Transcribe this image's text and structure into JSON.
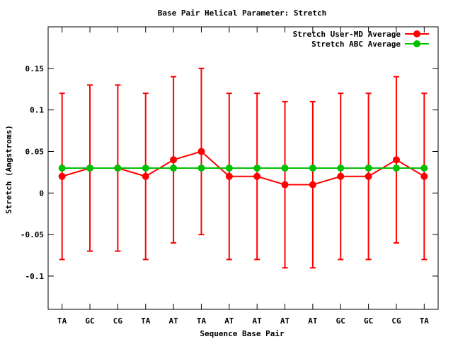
{
  "chart_data": {
    "type": "line",
    "title": "Base Pair Helical Parameter: Stretch",
    "xlabel": "Sequence Base Pair",
    "ylabel": "Stretch (Angstroms)",
    "categories": [
      "TA",
      "GC",
      "CG",
      "TA",
      "AT",
      "TA",
      "AT",
      "AT",
      "AT",
      "AT",
      "GC",
      "GC",
      "CG",
      "TA"
    ],
    "ylim": [
      -0.14,
      0.2
    ],
    "yticks": [
      -0.1,
      -0.05,
      0,
      0.05,
      0.1,
      0.15
    ],
    "ytick_labels": [
      "-0.1",
      "-0.05",
      "0",
      "0.05",
      "0.1",
      "0.15"
    ],
    "grid": false,
    "legend_position": "top-right",
    "series": [
      {
        "name": "Stretch User-MD Average",
        "color": "#ff0000",
        "values": [
          0.02,
          0.03,
          0.03,
          0.02,
          0.04,
          0.05,
          0.02,
          0.02,
          0.01,
          0.01,
          0.02,
          0.02,
          0.04,
          0.02
        ],
        "error_low": [
          -0.08,
          -0.07,
          -0.07,
          -0.08,
          -0.06,
          -0.05,
          -0.08,
          -0.08,
          -0.09,
          -0.09,
          -0.08,
          -0.08,
          -0.06,
          -0.08
        ],
        "error_high": [
          0.12,
          0.13,
          0.13,
          0.12,
          0.14,
          0.15,
          0.12,
          0.12,
          0.11,
          0.11,
          0.12,
          0.12,
          0.14,
          0.12
        ]
      },
      {
        "name": "Stretch ABC Average",
        "color": "#00c000",
        "values": [
          0.03,
          0.03,
          0.03,
          0.03,
          0.03,
          0.03,
          0.03,
          0.03,
          0.03,
          0.03,
          0.03,
          0.03,
          0.03,
          0.03
        ]
      }
    ]
  }
}
